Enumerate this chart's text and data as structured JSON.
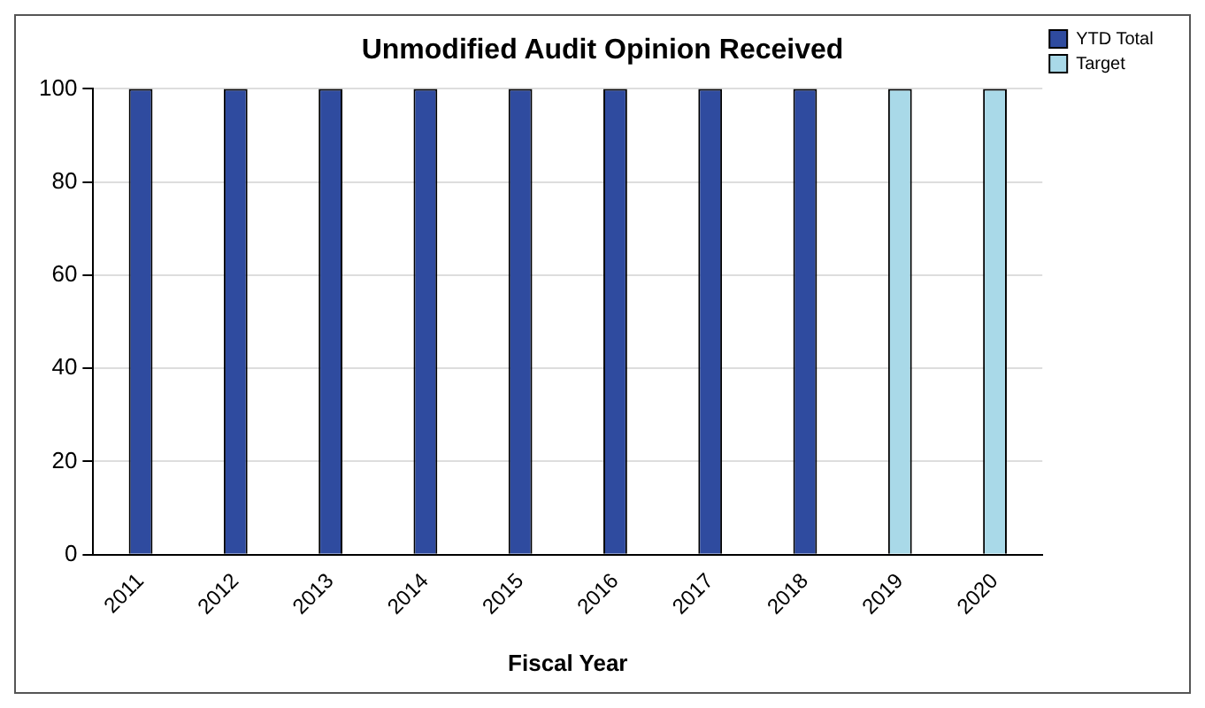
{
  "chart_data": {
    "type": "bar",
    "title": "Unmodified Audit Opinion Received",
    "xlabel": "Fiscal Year",
    "categories": [
      "2011",
      "2012",
      "2013",
      "2014",
      "2015",
      "2016",
      "2017",
      "2018",
      "2019",
      "2020"
    ],
    "series": [
      {
        "name": "YTD Total",
        "color": "#2f4b9f",
        "values": [
          100,
          100,
          100,
          100,
          100,
          100,
          100,
          100,
          null,
          null
        ]
      },
      {
        "name": "Target",
        "color": "#a9d9e8",
        "values": [
          null,
          null,
          null,
          null,
          null,
          null,
          null,
          null,
          100,
          100
        ]
      }
    ],
    "ylim": [
      0,
      100
    ],
    "yticks": [
      0,
      20,
      40,
      60,
      80,
      100
    ],
    "grid": "y",
    "legend": "top right"
  }
}
